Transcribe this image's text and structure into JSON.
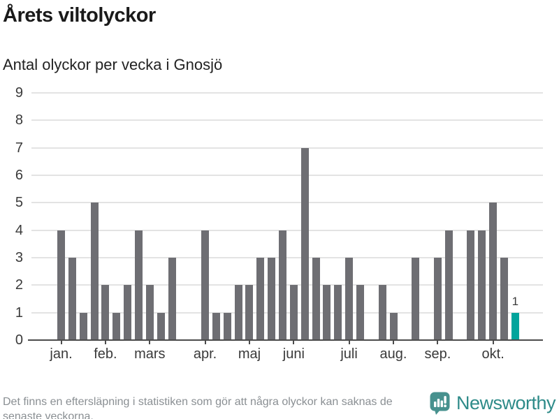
{
  "header": {
    "title": "Årets viltolyckor",
    "subtitle": "Antal olyckor per vecka i Gnosjö"
  },
  "chart_data": {
    "type": "bar",
    "title": "Årets viltolyckor",
    "subtitle": "Antal olyckor per vecka i Gnosjö",
    "x_unit": "vecka (week of the year)",
    "y_unit": "antal olyckor",
    "values_per_week": [
      4,
      3,
      1,
      5,
      2,
      1,
      2,
      4,
      2,
      1,
      3,
      0,
      0,
      4,
      1,
      1,
      2,
      2,
      3,
      3,
      4,
      2,
      7,
      3,
      2,
      2,
      3,
      2,
      0,
      2,
      1,
      0,
      3,
      0,
      3,
      4,
      0,
      4,
      4,
      5,
      3,
      1
    ],
    "month_ticks": [
      {
        "label": "jan.",
        "slot": 1
      },
      {
        "label": "feb.",
        "slot": 5
      },
      {
        "label": "mars",
        "slot": 9
      },
      {
        "label": "apr.",
        "slot": 14
      },
      {
        "label": "maj",
        "slot": 18
      },
      {
        "label": "juni",
        "slot": 22
      },
      {
        "label": "juli",
        "slot": 27
      },
      {
        "label": "aug.",
        "slot": 31
      },
      {
        "label": "sep.",
        "slot": 35
      },
      {
        "label": "okt.",
        "slot": 40
      }
    ],
    "ylim": [
      0,
      9
    ],
    "yticks": [
      0,
      1,
      2,
      3,
      4,
      5,
      6,
      7,
      8,
      9
    ],
    "grid": true,
    "legend": "none",
    "bar_color": "#6e6e73",
    "highlight_color": "#00a49c",
    "highlight_index": 41,
    "highlight_label": "1"
  },
  "footer": {
    "note_lines": [
      "Det finns en eftersläpning i statistiken som gör att några olyckor kan saknas de",
      "senaste veckorna."
    ],
    "brand": "Newsworthy",
    "brand_color": "#2e8b89",
    "brand_icon": "speech-bubble-bar-chart-exclamation"
  }
}
